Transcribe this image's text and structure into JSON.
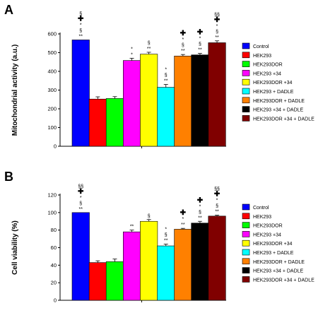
{
  "colors": {
    "axis": "#000000",
    "series": [
      "#0000ff",
      "#ff0000",
      "#00ff00",
      "#ff00ff",
      "#ffff00",
      "#00ffff",
      "#ff8000",
      "#000000",
      "#800000"
    ]
  },
  "chart_data": [
    {
      "type": "bar",
      "panel_label": "A",
      "ylabel": "Mitochondrial activity (a.u.)",
      "ylim": [
        0,
        600
      ],
      "yticks": [
        "0",
        "100",
        "200",
        "300",
        "400",
        "500",
        "600"
      ],
      "legend_position": "right",
      "categories": [
        "Control",
        "HEK293",
        "HEK293DOR",
        "HEK293 +34",
        "HEK293DOR +34",
        "HEK293 + DADLE",
        "HEK293DOR + DADLE",
        "HEK293 +34 + DADLE",
        "HEK293DOR +34 + DADLE"
      ],
      "values": [
        568,
        252,
        255,
        458,
        492,
        315,
        482,
        488,
        553
      ],
      "errors": [
        0,
        12,
        10,
        12,
        10,
        15,
        8,
        8,
        10
      ],
      "annotations": [
        [
          "§",
          "✚",
          "*",
          "§",
          "**"
        ],
        [],
        [],
        [
          "*",
          "*"
        ],
        [
          "§",
          "**"
        ],
        [
          "*",
          "§",
          "**"
        ],
        [
          "✚",
          "*",
          "§",
          "**"
        ],
        [
          "✚",
          "*",
          "§",
          "**"
        ],
        [
          "§§",
          "✚",
          "*",
          "§",
          "**"
        ]
      ]
    },
    {
      "type": "bar",
      "panel_label": "B",
      "ylabel": "Cell viability (%)",
      "ylim": [
        0,
        120
      ],
      "yticks": [
        "0",
        "20",
        "40",
        "60",
        "80",
        "100",
        "120"
      ],
      "legend_position": "right",
      "categories": [
        "Control",
        "HEK293",
        "HEK293DOR",
        "HEK293 +34",
        "HEK293DOR +34",
        "HEK293 + DADLE",
        "HEK293DOR + DADLE",
        "HEK293 +34 + DADLE",
        "HEK293DOR +34 + DADLE"
      ],
      "values": [
        100,
        43,
        44,
        78,
        90,
        62,
        81,
        88,
        96
      ],
      "errors": [
        0,
        2,
        3,
        2,
        2,
        2,
        1,
        2,
        1
      ],
      "annotations": [
        [
          "§§",
          "✚",
          "*",
          "§",
          "**"
        ],
        [],
        [],
        [
          "**"
        ],
        [
          "§"
        ],
        [
          "*",
          "§",
          "**"
        ],
        [
          "✚",
          "*",
          "**"
        ],
        [
          "✚",
          "*",
          "§",
          "**"
        ],
        [
          "§§",
          "✚",
          "*",
          "§",
          "**"
        ]
      ]
    }
  ]
}
